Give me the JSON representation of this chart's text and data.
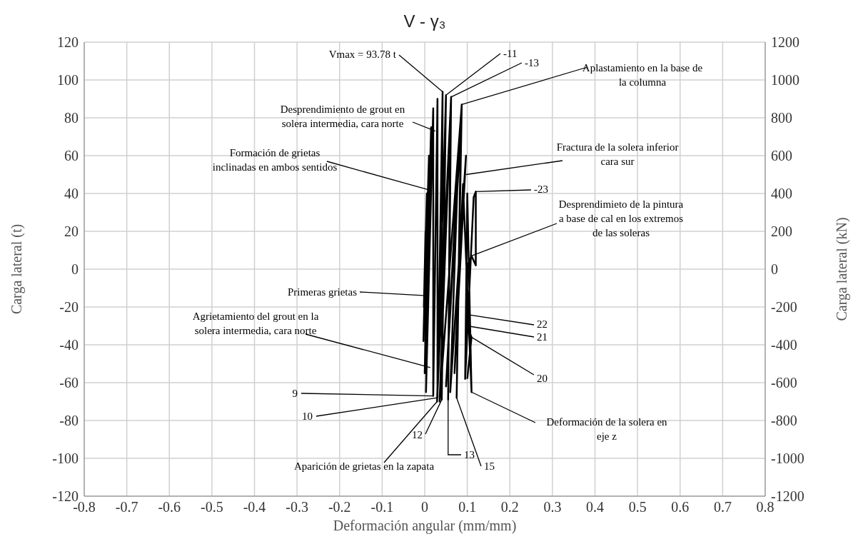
{
  "chart_data": {
    "type": "line",
    "title": "V - γ₃",
    "xlabel": "Deformación angular (mm/mm)",
    "ylabel": "Carga lateral (t)",
    "y2label": "Carga lateral (kN)",
    "x": [
      0,
      0.002,
      -0.002,
      0.005,
      -0.003,
      0.01,
      0,
      0.015,
      0.003,
      0.02,
      0.02,
      0.03,
      0.03,
      0.042,
      0.04,
      0.05,
      0.029,
      0.062,
      0.055,
      0.06,
      0.035,
      0.087,
      0.075,
      0.085,
      0.05,
      0.08,
      0.06,
      0.097,
      0.07,
      0.09,
      0.11,
      0.1,
      0.095,
      0.115,
      0.12,
      0.12,
      0.11,
      0.1,
      0.1,
      0.1,
      0.11,
      0.1
    ],
    "series": [
      {
        "color": "#000000",
        "values": [
          0,
          20,
          -20,
          40,
          -38,
          60,
          -55,
          75,
          -65,
          85,
          -67,
          90,
          -68,
          93.78,
          -69,
          92,
          -70,
          91,
          -69,
          80,
          -70,
          87,
          -68,
          75,
          -62,
          65,
          -65,
          60,
          -55,
          45,
          -65,
          40,
          -58,
          38,
          41,
          2,
          7,
          2,
          -24,
          -30,
          -36,
          -58
        ]
      }
    ],
    "xlim": [
      -0.8,
      0.8
    ],
    "xticks": [
      -0.8,
      -0.7,
      -0.6,
      -0.5,
      -0.4,
      -0.3,
      -0.2,
      -0.1,
      0,
      0.1,
      0.2,
      0.3,
      0.4,
      0.5,
      0.6,
      0.7,
      0.8
    ],
    "ylim": [
      -120,
      120
    ],
    "yticks": [
      -120,
      -100,
      -80,
      -60,
      -40,
      -20,
      0,
      20,
      40,
      60,
      80,
      100,
      120
    ],
    "y2lim": [
      -1200,
      1200
    ],
    "y2ticks": [
      -1200,
      -1000,
      -800,
      -600,
      -400,
      -200,
      0,
      200,
      400,
      600,
      800,
      1000,
      1200
    ],
    "grid": true,
    "marker": "none",
    "line_style": "solid",
    "annotations": [
      {
        "text": "Vmax = 93.78 t",
        "x": 0.042,
        "y": 93.78
      },
      {
        "text": "-11",
        "x": 0.05,
        "y": 92
      },
      {
        "text": "-13",
        "x": 0.062,
        "y": 91
      },
      {
        "text": "Aplastamiento en la base de la columna",
        "x": 0.087,
        "y": 87
      },
      {
        "text": "Desprendimiento de grout en solera intermedia, cara norte",
        "x": 0.025,
        "y": 73
      },
      {
        "text": "Formación de grietas inclinadas en ambos sentidos",
        "x": 0.008,
        "y": 42
      },
      {
        "text": "Fractura de la solera inferior cara sur",
        "x": 0.097,
        "y": 50
      },
      {
        "text": "-23",
        "x": 0.12,
        "y": 41
      },
      {
        "text": "Desprendimieto de la pintura a base de cal en los extremos de las soleras",
        "x": 0.11,
        "y": 7
      },
      {
        "text": "Primeras grietas",
        "x": 0.003,
        "y": -14
      },
      {
        "text": "22",
        "x": 0.1,
        "y": -24
      },
      {
        "text": "21",
        "x": 0.1,
        "y": -30
      },
      {
        "text": "20",
        "x": 0.11,
        "y": -36
      },
      {
        "text": "Agrietamiento del grout en la solera intermedia, cara norte",
        "x": 0.013,
        "y": -52
      },
      {
        "text": "9",
        "x": 0.02,
        "y": -67
      },
      {
        "text": "10",
        "x": 0.03,
        "y": -68
      },
      {
        "text": "12",
        "x": 0.04,
        "y": -69
      },
      {
        "text": "13",
        "x": 0.055,
        "y": -69
      },
      {
        "text": "15",
        "x": 0.075,
        "y": -68
      },
      {
        "text": "Deformación de la solera en eje z",
        "x": 0.11,
        "y": -65
      },
      {
        "text": "Aparición de grietas en la zapata",
        "x": 0.029,
        "y": -70
      }
    ]
  }
}
